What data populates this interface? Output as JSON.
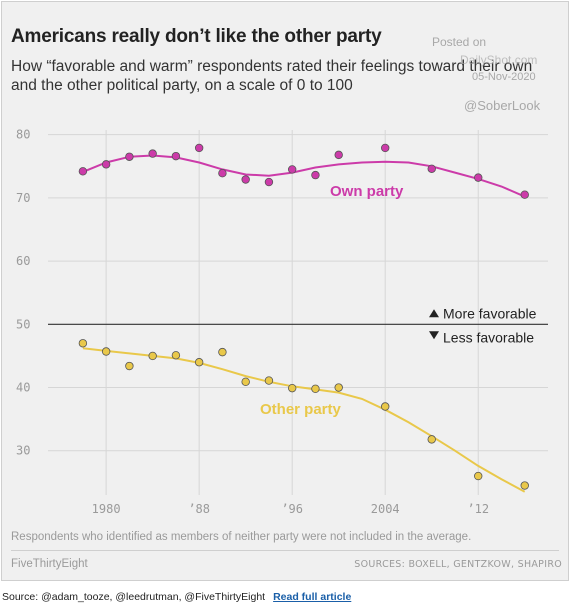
{
  "header": {
    "title": "Americans really don’t like the other party",
    "subtitle": "How “favorable and warm” respondents rated their feelings toward their own and the other political party, on a scale of 0 to 100"
  },
  "watermark": {
    "posted": "Posted on",
    "site": "DailyShot.com",
    "date": "05-Nov-2020",
    "handle": "@SoberLook"
  },
  "chart_data": {
    "type": "scatter",
    "x_ticks": [
      1980,
      1988,
      1996,
      2004,
      2012
    ],
    "x_tick_labels": [
      "1980",
      "’88",
      "’96",
      "2004",
      "’12"
    ],
    "xlim": [
      1975,
      2018
    ],
    "ylim": [
      23,
      82
    ],
    "y_ticks": [
      30,
      40,
      50,
      60,
      70,
      80
    ],
    "y_tick_labels": [
      "30",
      "40",
      "50",
      "60",
      "70",
      "80"
    ],
    "grid": true,
    "reference_line": {
      "y": 50,
      "above_label": "More favorable",
      "below_label": "Less favorable"
    },
    "series": [
      {
        "name": "Own party",
        "color": "#cc3ba9",
        "points": [
          [
            1978,
            74.2
          ],
          [
            1980,
            75.3
          ],
          [
            1982,
            76.5
          ],
          [
            1984,
            77
          ],
          [
            1986,
            76.6
          ],
          [
            1988,
            77.9
          ],
          [
            1990,
            73.9
          ],
          [
            1992,
            72.9
          ],
          [
            1994,
            72.5
          ],
          [
            1996,
            74.5
          ],
          [
            1998,
            73.6
          ],
          [
            2000,
            76.8
          ],
          [
            2004,
            77.9
          ],
          [
            2008,
            74.6
          ],
          [
            2012,
            73.2
          ],
          [
            2016,
            70.5
          ]
        ],
        "trend": [
          [
            1978,
            74.1
          ],
          [
            1980,
            75.6
          ],
          [
            1982,
            76.5
          ],
          [
            1984,
            76.7
          ],
          [
            1986,
            76.4
          ],
          [
            1988,
            75.6
          ],
          [
            1990,
            74.5
          ],
          [
            1992,
            73.7
          ],
          [
            1994,
            73.5
          ],
          [
            1996,
            74
          ],
          [
            1998,
            74.8
          ],
          [
            2000,
            75.3
          ],
          [
            2002,
            75.6
          ],
          [
            2004,
            75.7
          ],
          [
            2006,
            75.6
          ],
          [
            2008,
            75
          ],
          [
            2010,
            74
          ],
          [
            2012,
            73
          ],
          [
            2014,
            71.8
          ],
          [
            2016,
            70.2
          ]
        ]
      },
      {
        "name": "Other party",
        "color": "#e9c84a",
        "points": [
          [
            1978,
            47
          ],
          [
            1980,
            45.7
          ],
          [
            1982,
            43.4
          ],
          [
            1984,
            45
          ],
          [
            1986,
            45.1
          ],
          [
            1988,
            44
          ],
          [
            1990,
            45.6
          ],
          [
            1992,
            40.9
          ],
          [
            1994,
            41.1
          ],
          [
            1996,
            39.9
          ],
          [
            1998,
            39.8
          ],
          [
            2000,
            40
          ],
          [
            2004,
            37
          ],
          [
            2008,
            31.8
          ],
          [
            2012,
            26
          ],
          [
            2016,
            24.5
          ]
        ],
        "trend": [
          [
            1978,
            46.2
          ],
          [
            1980,
            45.8
          ],
          [
            1982,
            45.4
          ],
          [
            1984,
            45
          ],
          [
            1986,
            44.6
          ],
          [
            1988,
            43.9
          ],
          [
            1990,
            42.9
          ],
          [
            1992,
            41.8
          ],
          [
            1994,
            40.9
          ],
          [
            1996,
            40.2
          ],
          [
            1998,
            39.7
          ],
          [
            2000,
            39.2
          ],
          [
            2002,
            38.2
          ],
          [
            2004,
            36.5
          ],
          [
            2006,
            34.5
          ],
          [
            2008,
            32.3
          ],
          [
            2010,
            30
          ],
          [
            2012,
            27.6
          ],
          [
            2014,
            25.5
          ],
          [
            2016,
            23.5
          ]
        ]
      }
    ]
  },
  "footer": {
    "note": "Respondents who identified as members of neither party were not included in the average.",
    "brand": "FiveThirtyEight",
    "sources": "SOURCES: BOXELL, GENTZKOW, SHAPIRO"
  },
  "credit": {
    "text": "Source: @adam_tooze, @leedrutman, @FiveThirtyEight",
    "link": "Read full article"
  }
}
